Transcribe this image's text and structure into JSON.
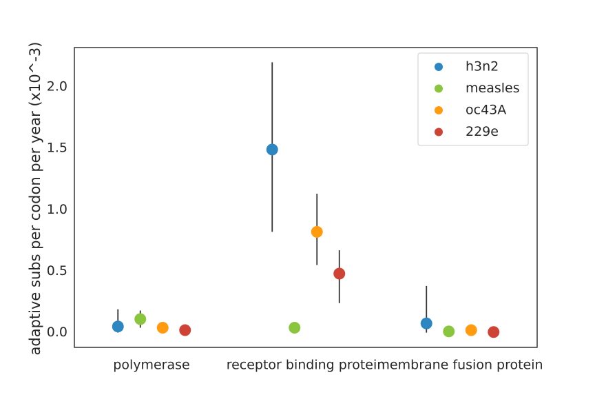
{
  "chart_data": {
    "type": "scatter",
    "xlabel": "",
    "ylabel": "adaptive subs per codon per year (x10^-3)",
    "categories": [
      "polymerase",
      "receptor binding protein",
      "membrane fusion protein"
    ],
    "ylim": [
      -0.12,
      2.32
    ],
    "yticks": [
      "0.0",
      "0.5",
      "1.0",
      "1.5",
      "2.0"
    ],
    "grid": false,
    "legend_position": "top-right",
    "series": [
      {
        "name": "h3n2",
        "color": "#2e86c1",
        "values": [
          0.05,
          1.49,
          0.075
        ],
        "err_low": [
          0.0,
          0.82,
          0.0
        ],
        "err_high": [
          0.19,
          2.2,
          0.38
        ]
      },
      {
        "name": "measles",
        "color": "#8bc53f",
        "values": [
          0.11,
          0.04,
          0.01
        ],
        "err_low": [
          0.04,
          null,
          null
        ],
        "err_high": [
          0.18,
          null,
          null
        ]
      },
      {
        "name": "oc43A",
        "color": "#ff9b10",
        "values": [
          0.04,
          0.82,
          0.02
        ],
        "err_low": [
          null,
          0.55,
          null
        ],
        "err_high": [
          null,
          1.13,
          null
        ]
      },
      {
        "name": "229e",
        "color": "#cd4436",
        "values": [
          0.02,
          0.48,
          0.005
        ],
        "err_low": [
          null,
          0.24,
          0.0
        ],
        "err_high": [
          null,
          0.67,
          0.05
        ]
      }
    ]
  }
}
